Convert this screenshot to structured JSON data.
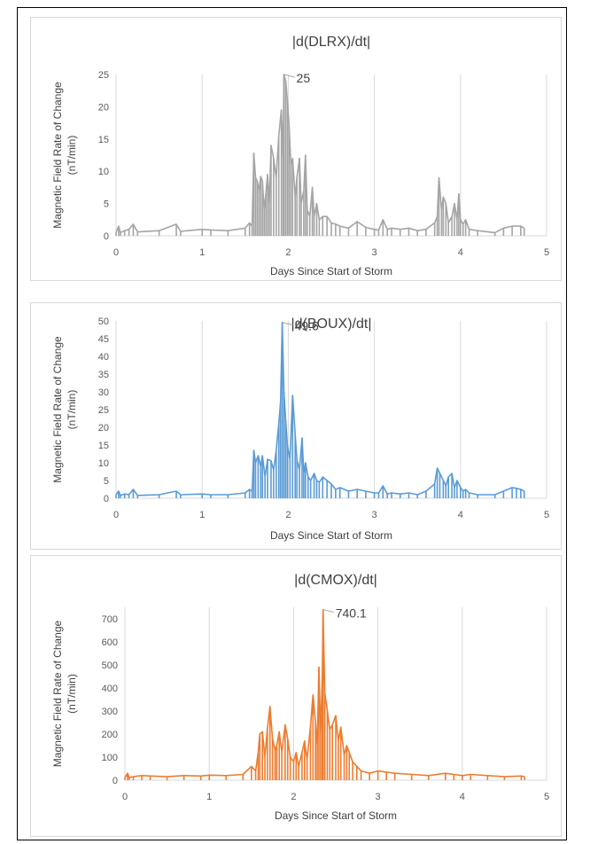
{
  "chart_data": [
    {
      "type": "line",
      "title": "|d(DLRX)/dt|",
      "xlabel": "Days Since Start of Storm",
      "ylabel": "Magnetic Field Rate of Change (nT/min)",
      "ylabel_lines": [
        "Magnetic Field Rate of Change",
        "(nT/min)"
      ],
      "xlim": [
        0,
        5
      ],
      "ylim": [
        0,
        25
      ],
      "xticks": [
        0,
        1,
        2,
        3,
        4,
        5
      ],
      "yticks": [
        0,
        5,
        10,
        15,
        20,
        25
      ],
      "grid": "vertical",
      "color": "#a5a5a5",
      "annotation": {
        "text": "25",
        "x": 1.95,
        "y": 25
      },
      "series": [
        {
          "x": [
            0,
            0.03,
            0.05,
            0.1,
            0.15,
            0.2,
            0.25,
            0.5,
            0.7,
            0.75,
            1.0,
            1.1,
            1.3,
            1.5,
            1.55,
            1.58,
            1.6,
            1.62,
            1.64,
            1.66,
            1.68,
            1.7,
            1.72,
            1.74,
            1.76,
            1.78,
            1.8,
            1.83,
            1.86,
            1.89,
            1.92,
            1.94,
            1.95,
            1.97,
            1.99,
            2.01,
            2.03,
            2.05,
            2.08,
            2.1,
            2.13,
            2.15,
            2.18,
            2.2,
            2.22,
            2.25,
            2.28,
            2.3,
            2.33,
            2.36,
            2.4,
            2.45,
            2.5,
            2.55,
            2.6,
            2.7,
            2.8,
            2.9,
            3.0,
            3.05,
            3.1,
            3.15,
            3.2,
            3.3,
            3.4,
            3.5,
            3.6,
            3.7,
            3.73,
            3.75,
            3.78,
            3.8,
            3.83,
            3.86,
            3.9,
            3.93,
            3.96,
            3.98,
            4.0,
            4.03,
            4.06,
            4.1,
            4.2,
            4.4,
            4.5,
            4.6,
            4.7,
            4.74
          ],
          "y": [
            0.5,
            1.5,
            0.5,
            0.8,
            1.0,
            1.8,
            0.6,
            0.8,
            1.8,
            0.7,
            1.0,
            0.9,
            0.8,
            1.2,
            2.0,
            1.5,
            12.8,
            9.0,
            8.5,
            7.0,
            9.2,
            8.5,
            4.0,
            6.5,
            9.5,
            5.0,
            14.0,
            12.0,
            9.0,
            15.5,
            19.5,
            12.0,
            25.0,
            24.0,
            21.0,
            17.0,
            11.0,
            12.0,
            6.0,
            9.0,
            12.0,
            5.0,
            7.0,
            12.5,
            4.0,
            3.0,
            7.5,
            3.0,
            5.0,
            2.5,
            3.0,
            3.0,
            2.0,
            1.8,
            1.5,
            1.2,
            2.2,
            1.3,
            1.0,
            0.9,
            2.5,
            1.0,
            1.2,
            1.0,
            1.2,
            0.8,
            1.0,
            2.0,
            3.0,
            9.0,
            4.0,
            6.0,
            5.0,
            2.0,
            3.0,
            5.0,
            2.5,
            6.5,
            2.5,
            1.8,
            2.5,
            1.0,
            0.8,
            0.5,
            1.2,
            1.5,
            1.5,
            1.2
          ]
        }
      ]
    },
    {
      "type": "line",
      "title": "|d(BOUX)/dt|",
      "xlabel": "Days Since Start of Storm",
      "ylabel": "Magnetic Field Rate of Change (nT/min)",
      "ylabel_lines": [
        "Magnetic Field Rate of Change",
        "(nT/min)"
      ],
      "xlim": [
        0,
        5
      ],
      "ylim": [
        0,
        50
      ],
      "xticks": [
        0,
        1,
        2,
        3,
        4,
        5
      ],
      "yticks": [
        0,
        5,
        10,
        15,
        20,
        25,
        30,
        35,
        40,
        45,
        50
      ],
      "grid": "vertical",
      "color": "#5b9bd5",
      "annotation": {
        "text": "49.6",
        "x": 1.93,
        "y": 49.6
      },
      "series": [
        {
          "x": [
            0,
            0.03,
            0.05,
            0.1,
            0.15,
            0.2,
            0.25,
            0.5,
            0.7,
            0.75,
            1.0,
            1.1,
            1.3,
            1.5,
            1.55,
            1.58,
            1.6,
            1.62,
            1.65,
            1.68,
            1.7,
            1.73,
            1.76,
            1.8,
            1.83,
            1.86,
            1.89,
            1.91,
            1.93,
            1.95,
            1.97,
            1.99,
            2.02,
            2.05,
            2.08,
            2.1,
            2.13,
            2.16,
            2.18,
            2.2,
            2.23,
            2.26,
            2.3,
            2.33,
            2.36,
            2.4,
            2.45,
            2.5,
            2.55,
            2.6,
            2.7,
            2.8,
            2.9,
            3.0,
            3.05,
            3.1,
            3.15,
            3.2,
            3.3,
            3.4,
            3.5,
            3.6,
            3.7,
            3.73,
            3.76,
            3.8,
            3.83,
            3.86,
            3.9,
            3.93,
            3.96,
            4.0,
            4.03,
            4.06,
            4.1,
            4.2,
            4.4,
            4.5,
            4.6,
            4.65,
            4.7,
            4.74
          ],
          "y": [
            1.0,
            2.0,
            0.8,
            1.2,
            1.0,
            2.5,
            0.8,
            1.0,
            2.0,
            1.0,
            1.2,
            1.0,
            1.0,
            1.5,
            2.5,
            2.0,
            13.5,
            10.0,
            12.0,
            9.0,
            12.0,
            6.0,
            11.0,
            10.5,
            8.0,
            13.5,
            21.0,
            27.0,
            49.6,
            30.0,
            22.0,
            15.0,
            11.0,
            29.0,
            18.0,
            11.0,
            8.0,
            17.0,
            7.0,
            10.0,
            6.0,
            5.0,
            7.0,
            5.0,
            4.5,
            6.0,
            5.0,
            4.0,
            2.5,
            3.0,
            2.0,
            2.5,
            2.0,
            1.5,
            1.5,
            3.5,
            1.2,
            1.5,
            1.2,
            1.5,
            1.0,
            2.0,
            4.0,
            8.5,
            7.0,
            5.0,
            3.5,
            6.0,
            7.0,
            3.0,
            5.0,
            3.0,
            2.0,
            2.5,
            1.5,
            1.0,
            1.0,
            2.0,
            3.0,
            2.8,
            2.5,
            2.0
          ]
        }
      ]
    },
    {
      "type": "line",
      "title": "|d(CMOX)/dt|",
      "xlabel": "Days Since Start of Storm",
      "ylabel": "Magnetic Field Rate of Change (nT/min)",
      "ylabel_lines": [
        "Magnetic Field Rate of Change",
        "(nT/min)"
      ],
      "xlim": [
        0,
        5
      ],
      "ylim": [
        0,
        750
      ],
      "xticks": [
        0,
        1,
        2,
        3,
        4,
        5
      ],
      "yticks": [
        0,
        100,
        200,
        300,
        400,
        500,
        600,
        700
      ],
      "grid": "vertical",
      "color": "#ed7d31",
      "annotation": {
        "text": "740.1",
        "x": 2.35,
        "y": 740.1
      },
      "series": [
        {
          "x": [
            0,
            0.03,
            0.05,
            0.1,
            0.2,
            0.3,
            0.5,
            0.7,
            0.9,
            1.0,
            1.2,
            1.4,
            1.5,
            1.55,
            1.58,
            1.6,
            1.63,
            1.66,
            1.69,
            1.72,
            1.75,
            1.78,
            1.8,
            1.83,
            1.86,
            1.9,
            1.93,
            1.96,
            2.0,
            2.03,
            2.06,
            2.1,
            2.13,
            2.16,
            2.2,
            2.23,
            2.26,
            2.28,
            2.3,
            2.32,
            2.34,
            2.35,
            2.37,
            2.4,
            2.43,
            2.46,
            2.5,
            2.53,
            2.56,
            2.6,
            2.63,
            2.66,
            2.7,
            2.75,
            2.8,
            2.9,
            3.0,
            3.1,
            3.2,
            3.4,
            3.6,
            3.8,
            3.9,
            4.0,
            4.1,
            4.3,
            4.5,
            4.7,
            4.74
          ],
          "y": [
            10,
            30,
            12,
            15,
            20,
            18,
            15,
            20,
            18,
            22,
            20,
            25,
            60,
            40,
            120,
            200,
            210,
            100,
            225,
            320,
            180,
            130,
            150,
            210,
            120,
            240,
            180,
            100,
            80,
            120,
            60,
            120,
            170,
            90,
            230,
            370,
            250,
            150,
            490,
            200,
            450,
            740.1,
            380,
            300,
            220,
            240,
            280,
            170,
            230,
            110,
            150,
            120,
            80,
            60,
            40,
            30,
            40,
            35,
            30,
            25,
            20,
            30,
            25,
            20,
            25,
            20,
            15,
            18,
            15
          ]
        }
      ]
    }
  ]
}
